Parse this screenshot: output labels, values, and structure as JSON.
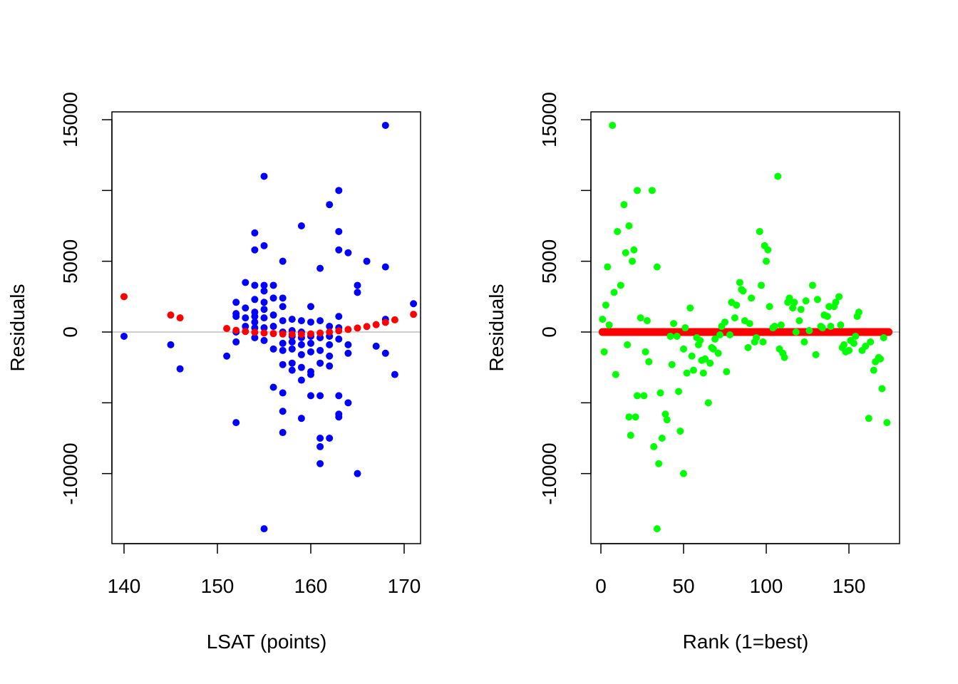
{
  "chart_data": [
    {
      "type": "scatter",
      "title": "",
      "xlabel": "LSAT (points)",
      "ylabel": "Residuals",
      "xlim": [
        139,
        172
      ],
      "ylim": [
        -15000,
        15600
      ],
      "x_ticks": [
        "140",
        "150",
        "160",
        "170"
      ],
      "x_tick_values": [
        140,
        150,
        160,
        170
      ],
      "y_ticks": [
        "-10000",
        "0",
        "5000",
        "15000"
      ],
      "y_tick_values": [
        -10000,
        -5000,
        0,
        5000,
        10000,
        15000
      ],
      "reference_line": {
        "y": 0,
        "color": "#bebebe"
      },
      "series": [
        {
          "color": "#0000ff",
          "points": [
            [
              140,
              -300
            ],
            [
              145,
              -900
            ],
            [
              146,
              -2600
            ],
            [
              151,
              -1700
            ],
            [
              152,
              -6400
            ],
            [
              152,
              2100
            ],
            [
              152,
              1300
            ],
            [
              152,
              1100
            ],
            [
              152,
              0
            ],
            [
              152,
              -700
            ],
            [
              153,
              3500
            ],
            [
              153,
              1700
            ],
            [
              153,
              1000
            ],
            [
              153,
              400
            ],
            [
              154,
              7000
            ],
            [
              154,
              5800
            ],
            [
              154,
              3300
            ],
            [
              154,
              2300
            ],
            [
              154,
              1400
            ],
            [
              154,
              1100
            ],
            [
              154,
              700
            ],
            [
              154,
              300
            ],
            [
              154,
              -400
            ],
            [
              155,
              11000
            ],
            [
              155,
              6100
            ],
            [
              155,
              3300
            ],
            [
              155,
              2900
            ],
            [
              155,
              2100
            ],
            [
              155,
              1600
            ],
            [
              155,
              1000
            ],
            [
              155,
              300
            ],
            [
              155,
              -600
            ],
            [
              155,
              -13900
            ],
            [
              156,
              3300
            ],
            [
              156,
              2400
            ],
            [
              156,
              1200
            ],
            [
              156,
              400
            ],
            [
              156,
              -1200
            ],
            [
              156,
              -3900
            ],
            [
              157,
              5000
            ],
            [
              157,
              2400
            ],
            [
              157,
              1800
            ],
            [
              157,
              800
            ],
            [
              157,
              0
            ],
            [
              157,
              -800
            ],
            [
              157,
              -1300
            ],
            [
              157,
              -2300
            ],
            [
              157,
              -4300
            ],
            [
              157,
              -5600
            ],
            [
              157,
              -7100
            ],
            [
              158,
              900
            ],
            [
              158,
              100
            ],
            [
              158,
              -300
            ],
            [
              158,
              -700
            ],
            [
              158,
              -1200
            ],
            [
              158,
              -2200
            ],
            [
              158,
              -2700
            ],
            [
              159,
              7500
            ],
            [
              159,
              800
            ],
            [
              159,
              0
            ],
            [
              159,
              -400
            ],
            [
              159,
              -900
            ],
            [
              159,
              -1600
            ],
            [
              159,
              -2500
            ],
            [
              159,
              -3400
            ],
            [
              159,
              -6100
            ],
            [
              160,
              1800
            ],
            [
              160,
              700
            ],
            [
              160,
              -300
            ],
            [
              160,
              -800
            ],
            [
              160,
              -1400
            ],
            [
              160,
              -2800
            ],
            [
              160,
              -3000
            ],
            [
              160,
              -4500
            ],
            [
              161,
              4500
            ],
            [
              161,
              800
            ],
            [
              161,
              -400
            ],
            [
              161,
              -1300
            ],
            [
              161,
              -2200
            ],
            [
              161,
              -4500
            ],
            [
              161,
              -7500
            ],
            [
              161,
              -8100
            ],
            [
              161,
              -9300
            ],
            [
              162,
              9000
            ],
            [
              162,
              400
            ],
            [
              162,
              -300
            ],
            [
              162,
              -900
            ],
            [
              162,
              -1700
            ],
            [
              162,
              -2400
            ],
            [
              162,
              -7500
            ],
            [
              163,
              10000
            ],
            [
              163,
              7100
            ],
            [
              163,
              5800
            ],
            [
              163,
              1100
            ],
            [
              163,
              300
            ],
            [
              163,
              -500
            ],
            [
              163,
              -4500
            ],
            [
              163,
              -5800
            ],
            [
              163,
              -6000
            ],
            [
              164,
              5600
            ],
            [
              164,
              -900
            ],
            [
              164,
              -1500
            ],
            [
              164,
              -5000
            ],
            [
              165,
              3300
            ],
            [
              165,
              2800
            ],
            [
              165,
              -10000
            ],
            [
              166,
              5000
            ],
            [
              167,
              -1000
            ],
            [
              168,
              14600
            ],
            [
              168,
              4600
            ],
            [
              168,
              900
            ],
            [
              168,
              -1500
            ],
            [
              169,
              -3000
            ],
            [
              171,
              2000
            ]
          ]
        },
        {
          "color": "#ff0000",
          "points": [
            [
              140,
              2500
            ],
            [
              145,
              1200
            ],
            [
              146,
              1000
            ],
            [
              151,
              250
            ],
            [
              152,
              120
            ],
            [
              153,
              40
            ],
            [
              154,
              -20
            ],
            [
              155,
              -70
            ],
            [
              156,
              -110
            ],
            [
              157,
              -140
            ],
            [
              158,
              -160
            ],
            [
              159,
              -160
            ],
            [
              160,
              -130
            ],
            [
              161,
              -70
            ],
            [
              162,
              0
            ],
            [
              163,
              90
            ],
            [
              164,
              180
            ],
            [
              165,
              280
            ],
            [
              166,
              390
            ],
            [
              167,
              520
            ],
            [
              168,
              680
            ],
            [
              169,
              860
            ],
            [
              171,
              1250
            ]
          ]
        }
      ]
    },
    {
      "type": "scatter",
      "title": "",
      "xlabel": "Rank (1=best)",
      "ylabel": "Residuals",
      "xlim": [
        -6,
        181
      ],
      "ylim": [
        -15000,
        15600
      ],
      "x_ticks": [
        "0",
        "50",
        "100",
        "150"
      ],
      "x_tick_values": [
        0,
        50,
        100,
        150
      ],
      "y_ticks": [
        "-10000",
        "0",
        "5000",
        "15000"
      ],
      "y_tick_values": [
        -10000,
        -5000,
        0,
        5000,
        10000,
        15000
      ],
      "reference_line": {
        "y": 0,
        "color": "#bebebe"
      },
      "fitted_line": {
        "color": "#ff0000",
        "x_range": [
          1,
          174
        ],
        "y": 0
      },
      "series": [
        {
          "color": "#00ff00",
          "points": [
            [
              1,
              900
            ],
            [
              2,
              -1400
            ],
            [
              3,
              1900
            ],
            [
              4,
              4600
            ],
            [
              5,
              500
            ],
            [
              7,
              14600
            ],
            [
              8,
              2800
            ],
            [
              9,
              -3000
            ],
            [
              10,
              7100
            ],
            [
              12,
              3300
            ],
            [
              14,
              9000
            ],
            [
              15,
              5600
            ],
            [
              16,
              -900
            ],
            [
              17,
              -6000
            ],
            [
              17,
              7500
            ],
            [
              18,
              -7300
            ],
            [
              19,
              5000
            ],
            [
              20,
              5800
            ],
            [
              21,
              -6000
            ],
            [
              22,
              -4500
            ],
            [
              22,
              10000
            ],
            [
              24,
              1000
            ],
            [
              26,
              -4500
            ],
            [
              27,
              -1400
            ],
            [
              28,
              800
            ],
            [
              29,
              -2100
            ],
            [
              31,
              10000
            ],
            [
              32,
              -8100
            ],
            [
              34,
              -13900
            ],
            [
              34,
              4600
            ],
            [
              35,
              -9300
            ],
            [
              36,
              -4300
            ],
            [
              37,
              -7500
            ],
            [
              39,
              -5800
            ],
            [
              40,
              -6200
            ],
            [
              42,
              -300
            ],
            [
              43,
              -2300
            ],
            [
              44,
              600
            ],
            [
              46,
              -300
            ],
            [
              47,
              -4200
            ],
            [
              48,
              -7000
            ],
            [
              50,
              -10000
            ],
            [
              50,
              -1200
            ],
            [
              51,
              300
            ],
            [
              52,
              -2900
            ],
            [
              54,
              1700
            ],
            [
              55,
              -1700
            ],
            [
              56,
              -2700
            ],
            [
              58,
              -400
            ],
            [
              59,
              -900
            ],
            [
              60,
              -600
            ],
            [
              61,
              -2000
            ],
            [
              62,
              -2900
            ],
            [
              63,
              -1900
            ],
            [
              65,
              -5000
            ],
            [
              66,
              -2200
            ],
            [
              67,
              -1100
            ],
            [
              68,
              -1200
            ],
            [
              69,
              -500
            ],
            [
              71,
              -1500
            ],
            [
              72,
              -200
            ],
            [
              73,
              400
            ],
            [
              75,
              700
            ],
            [
              76,
              -2800
            ],
            [
              78,
              -200
            ],
            [
              79,
              2100
            ],
            [
              81,
              1000
            ],
            [
              82,
              1900
            ],
            [
              84,
              3500
            ],
            [
              85,
              3000
            ],
            [
              86,
              2900
            ],
            [
              87,
              800
            ],
            [
              89,
              -1100
            ],
            [
              90,
              600
            ],
            [
              91,
              2400
            ],
            [
              93,
              -700
            ],
            [
              94,
              -400
            ],
            [
              96,
              7100
            ],
            [
              97,
              3300
            ],
            [
              98,
              -700
            ],
            [
              99,
              6100
            ],
            [
              100,
              5000
            ],
            [
              101,
              5800
            ],
            [
              102,
              1800
            ],
            [
              104,
              300
            ],
            [
              105,
              400
            ],
            [
              107,
              11000
            ],
            [
              108,
              -1200
            ],
            [
              109,
              500
            ],
            [
              110,
              -1500
            ],
            [
              111,
              -1800
            ],
            [
              113,
              2100
            ],
            [
              114,
              2400
            ],
            [
              116,
              1700
            ],
            [
              117,
              2100
            ],
            [
              118,
              0
            ],
            [
              120,
              800
            ],
            [
              121,
              1600
            ],
            [
              123,
              -700
            ],
            [
              124,
              2200
            ],
            [
              126,
              100
            ],
            [
              128,
              3300
            ],
            [
              130,
              -1600
            ],
            [
              131,
              2300
            ],
            [
              133,
              400
            ],
            [
              134,
              300
            ],
            [
              135,
              1200
            ],
            [
              137,
              1100
            ],
            [
              138,
              1800
            ],
            [
              139,
              400
            ],
            [
              141,
              1800
            ],
            [
              142,
              2100
            ],
            [
              144,
              2500
            ],
            [
              145,
              500
            ],
            [
              146,
              -1100
            ],
            [
              147,
              -900
            ],
            [
              148,
              -1400
            ],
            [
              150,
              -1300
            ],
            [
              151,
              -600
            ],
            [
              153,
              -800
            ],
            [
              154,
              -300
            ],
            [
              155,
              1100
            ],
            [
              156,
              1400
            ],
            [
              158,
              -1300
            ],
            [
              160,
              -1000
            ],
            [
              162,
              -6100
            ],
            [
              163,
              -700
            ],
            [
              165,
              -2700
            ],
            [
              166,
              -2100
            ],
            [
              168,
              -1800
            ],
            [
              169,
              -1900
            ],
            [
              170,
              -4000
            ],
            [
              171,
              -400
            ],
            [
              173,
              -6400
            ]
          ]
        }
      ]
    }
  ]
}
